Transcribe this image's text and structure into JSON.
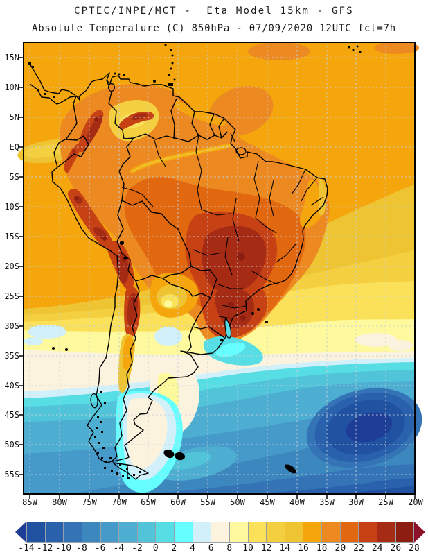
{
  "header": {
    "title_line1": "CPTEC/INPE/MCT -  Eta Model 15km - GFS",
    "title_line2": "Absolute Temperature (C) 850hPa - 07/09/2020 12UTC fct=7h"
  },
  "map": {
    "y_axis_labels": [
      "15N",
      "10N",
      "5N",
      "EQ",
      "5S",
      "10S",
      "15S",
      "20S",
      "25S",
      "30S",
      "35S",
      "40S",
      "45S",
      "50S",
      "55S"
    ],
    "x_axis_labels": [
      "85W",
      "80W",
      "75W",
      "70W",
      "65W",
      "60W",
      "55W",
      "50W",
      "45W",
      "40W",
      "35W",
      "30W",
      "25W",
      "20W"
    ],
    "graticule_color": "#c6d0da",
    "border_color": "#000000"
  },
  "colorbar": {
    "tick_labels": [
      "-14",
      "-12",
      "-10",
      "-8",
      "-6",
      "-4",
      "-2",
      "0",
      "2",
      "4",
      "6",
      "8",
      "10",
      "12",
      "14",
      "16",
      "18",
      "20",
      "22",
      "24",
      "26",
      "28"
    ],
    "colors": [
      "#1e3d96",
      "#2152a2",
      "#2a61ad",
      "#3474b6",
      "#3d87bf",
      "#459aca",
      "#4daed2",
      "#52c4da",
      "#57dde4",
      "#66ffff",
      "#d2f0fa",
      "#fcf3de",
      "#fdf99c",
      "#fbe15a",
      "#f4d040",
      "#eec432",
      "#f5a60d",
      "#ec8a21",
      "#e2680f",
      "#c64214",
      "#a62b15",
      "#8e1d11",
      "#8b1228"
    ],
    "units": "C"
  },
  "chart_data": {
    "type": "heatmap",
    "subtype": "filled_contour_map",
    "title": "CPTEC/INPE/MCT -  Eta Model 15km - GFS",
    "subtitle": "Absolute Temperature (C) 850hPa - 07/09/2020 12UTC fct=7h",
    "variable": "Absolute Temperature",
    "units": "C",
    "level": "850hPa",
    "valid": "07/09/2020 12UTC fct=7h",
    "region": "South America",
    "x_ticks": [
      "85W",
      "80W",
      "75W",
      "70W",
      "65W",
      "60W",
      "55W",
      "50W",
      "45W",
      "40W",
      "35W",
      "30W",
      "25W",
      "20W"
    ],
    "y_ticks": [
      "15N",
      "10N",
      "5N",
      "EQ",
      "5S",
      "10S",
      "15S",
      "20S",
      "25S",
      "30S",
      "35S",
      "40S",
      "45S",
      "50S",
      "55S"
    ],
    "colorbar_levels": [
      -14,
      -12,
      -10,
      -8,
      -6,
      -4,
      -2,
      0,
      2,
      4,
      6,
      8,
      10,
      12,
      14,
      16,
      18,
      20,
      22,
      24,
      26,
      28
    ],
    "colorbar_colors": [
      "#1e3d96",
      "#2152a2",
      "#2a61ad",
      "#3474b6",
      "#3d87bf",
      "#459aca",
      "#4daed2",
      "#52c4da",
      "#57dde4",
      "#66ffff",
      "#d2f0fa",
      "#fcf3de",
      "#fdf99c",
      "#fbe15a",
      "#f4d040",
      "#eec432",
      "#f5a60d",
      "#ec8a21",
      "#e2680f",
      "#c64214",
      "#a62b15",
      "#8e1d11",
      "#8b1228"
    ],
    "field_summary": [
      {
        "area": "Tropical land (Amazon / central Brazil)",
        "value_c": "20 to 28"
      },
      {
        "area": "Northern oceans",
        "value_c": "16 to 20"
      },
      {
        "area": "Andes ridge",
        "value_c": "22 to 28"
      },
      {
        "area": "Subtropics 20S-33S",
        "value_c": "6 to 16"
      },
      {
        "area": "Patagonia / Uruguay coast",
        "value_c": "0 to 8"
      },
      {
        "area": "Southern oceans 35S-55S",
        "value_c": "-14 to 2"
      }
    ],
    "grid": "dashed graticule every 5 degrees",
    "legend_position": "bottom horizontal colorbar"
  }
}
